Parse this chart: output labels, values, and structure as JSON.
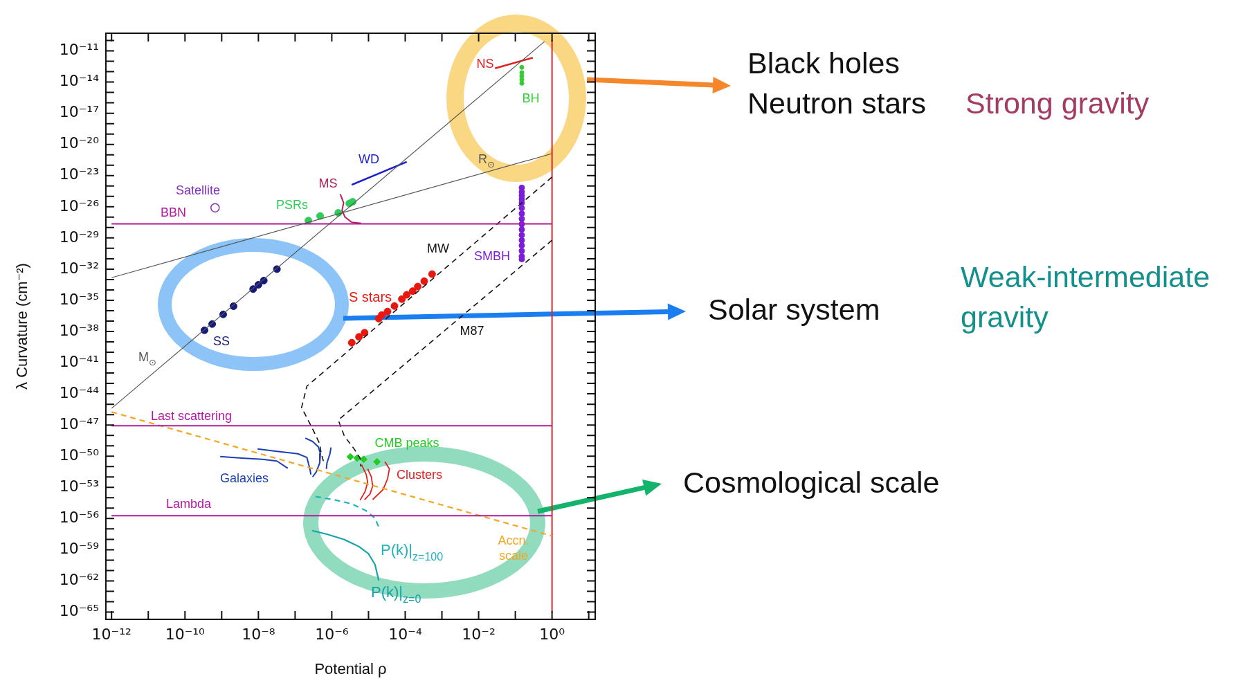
{
  "chart_data": {
    "type": "scatter",
    "xlabel": "Potential ρ",
    "ylabel": "λ Curvature (cm⁻²)",
    "log": "xy",
    "xlim": [
      7e-13,
      15
    ],
    "ylim": [
      2e-66,
      5e-10
    ],
    "xticks": [
      {
        "value": 1e-12,
        "label": "10⁻¹²"
      },
      {
        "value": 1e-11,
        "label": null
      },
      {
        "value": 1e-10,
        "label": "10⁻¹⁰"
      },
      {
        "value": 1e-09,
        "label": null
      },
      {
        "value": 1e-08,
        "label": "10⁻⁸"
      },
      {
        "value": 1e-07,
        "label": null
      },
      {
        "value": 1e-06,
        "label": "10⁻⁶"
      },
      {
        "value": 1e-05,
        "label": null
      },
      {
        "value": 0.0001,
        "label": "10⁻⁴"
      },
      {
        "value": 0.001,
        "label": null
      },
      {
        "value": 0.01,
        "label": "10⁻²"
      },
      {
        "value": 0.1,
        "label": null
      },
      {
        "value": 1,
        "label": "10⁰"
      },
      {
        "value": 10,
        "label": null
      }
    ],
    "yticks": [
      {
        "value": 1e-65,
        "label": "10⁻⁶⁵"
      },
      {
        "value": 1e-64,
        "label": null
      },
      {
        "value": 1e-63,
        "label": null
      },
      {
        "value": 1e-62,
        "label": "10⁻⁶²"
      },
      {
        "value": 1e-61,
        "label": null
      },
      {
        "value": 1e-60,
        "label": null
      },
      {
        "value": 1e-59,
        "label": "10⁻⁵⁹"
      },
      {
        "value": 1e-58,
        "label": null
      },
      {
        "value": 1e-57,
        "label": null
      },
      {
        "value": 1e-56,
        "label": "10⁻⁵⁶"
      },
      {
        "value": 1e-55,
        "label": null
      },
      {
        "value": 1e-54,
        "label": null
      },
      {
        "value": 1e-53,
        "label": "10⁻⁵³"
      },
      {
        "value": 1e-52,
        "label": null
      },
      {
        "value": 1e-51,
        "label": null
      },
      {
        "value": 1e-50,
        "label": "10⁻⁵⁰"
      },
      {
        "value": 1e-49,
        "label": null
      },
      {
        "value": 1e-48,
        "label": null
      },
      {
        "value": 1e-47,
        "label": "10⁻⁴⁷"
      },
      {
        "value": 1e-46,
        "label": null
      },
      {
        "value": 1e-45,
        "label": null
      },
      {
        "value": 1e-44,
        "label": "10⁻⁴⁴"
      },
      {
        "value": 1e-43,
        "label": null
      },
      {
        "value": 1e-42,
        "label": null
      },
      {
        "value": 1e-41,
        "label": "10⁻⁴¹"
      },
      {
        "value": 1e-40,
        "label": null
      },
      {
        "value": 1e-39,
        "label": null
      },
      {
        "value": 1e-38,
        "label": "10⁻³⁸"
      },
      {
        "value": 1e-37,
        "label": null
      },
      {
        "value": 1e-36,
        "label": null
      },
      {
        "value": 1e-35,
        "label": "10⁻³⁵"
      },
      {
        "value": 1e-34,
        "label": null
      },
      {
        "value": 1e-33,
        "label": null
      },
      {
        "value": 1e-32,
        "label": "10⁻³²"
      },
      {
        "value": 1e-31,
        "label": null
      },
      {
        "value": 1e-30,
        "label": null
      },
      {
        "value": 1e-29,
        "label": "10⁻²⁹"
      },
      {
        "value": 1e-28,
        "label": null
      },
      {
        "value": 1e-27,
        "label": null
      },
      {
        "value": 1e-26,
        "label": "10⁻²⁶"
      },
      {
        "value": 1e-25,
        "label": null
      },
      {
        "value": 1e-24,
        "label": null
      },
      {
        "value": 1e-23,
        "label": "10⁻²³"
      },
      {
        "value": 1e-22,
        "label": null
      },
      {
        "value": 1e-21,
        "label": null
      },
      {
        "value": 1e-20,
        "label": "10⁻²⁰"
      },
      {
        "value": 1e-19,
        "label": null
      },
      {
        "value": 1e-18,
        "label": null
      },
      {
        "value": 1e-17,
        "label": "10⁻¹⁷"
      },
      {
        "value": 1e-16,
        "label": null
      },
      {
        "value": 1e-15,
        "label": null
      },
      {
        "value": 1e-14,
        "label": "10⁻¹⁴"
      },
      {
        "value": 1e-13,
        "label": null
      },
      {
        "value": 1e-12,
        "label": null
      },
      {
        "value": 1e-11,
        "label": "10⁻¹¹"
      },
      {
        "value": 1e-10,
        "label": null
      }
    ],
    "annotations": [
      "Black holes",
      "Neutron stars",
      "Strong gravity",
      "Solar system",
      "Weak-intermediate gravity",
      "Cosmological scale",
      "R$_{⊙}$",
      "M$_{⊙}$"
    ],
    "series": [
      {
        "type": "line",
        "color": "#555555",
        "x": [
          1e-12,
          0.62
        ],
        "values": [
          4e-46,
          7.8e-11
        ]
      },
      {
        "type": "line",
        "color": "#555555",
        "x": [
          1e-12,
          1
        ],
        "values": [
          1.5e-33,
          1.3e-21
        ]
      },
      {
        "type": "line",
        "name": "BBN",
        "color": "#b5179e",
        "x": [
          1e-12,
          1
        ],
        "values": [
          2.3e-28,
          2.3e-28
        ]
      },
      {
        "type": "line",
        "name": "Last scattering",
        "color": "#b5179e",
        "x": [
          1e-12,
          1
        ],
        "values": [
          8.5e-48,
          8.5e-48
        ]
      },
      {
        "type": "line",
        "name": "Lambda",
        "color": "#b5179e",
        "x": [
          1e-12,
          1
        ],
        "values": [
          1.9e-56,
          1.9e-56
        ]
      },
      {
        "type": "line",
        "name": "Accn. scale",
        "color": "#f5a623",
        "line_style": "dashed",
        "x": [
          1e-12,
          1
        ],
        "values": [
          1.8e-46,
          2.1e-58
        ]
      },
      {
        "type": "line",
        "name": "MW",
        "color": "#111111",
        "line_style": "dashed",
        "x": [
          1,
          2.1e-07,
          1.5e-07,
          3e-07,
          4.6e-07,
          5.2e-07,
          5.9e-07
        ],
        "values": [
          7.1e-24,
          5.5e-44,
          4.8e-46,
          4.2e-48,
          1.8e-49,
          1.6e-50,
          3.4e-51
        ]
      },
      {
        "type": "line",
        "name": "M87",
        "color": "#111111",
        "line_style": "dashed",
        "x": [
          1,
          1.5e-06,
          2.2e-06,
          4e-06,
          5.9e-06,
          6.2e-06
        ],
        "values": [
          6e-30,
          3e-47,
          8.5e-49,
          5.4e-50,
          6.5e-51,
          1e-51
        ]
      },
      {
        "name": "S stars",
        "color": "#e8170f",
        "marker": "circle",
        "x": [
          0.00054,
          0.00033,
          0.00022,
          0.00016,
          0.00011,
          8.1e-05,
          5.1e-05,
          3.3e-05,
          2.3e-05,
          1.9e-05,
          7.8e-06,
          5.5e-06,
          3.5e-06
        ],
        "values": [
          3.3e-33,
          6.9e-34,
          2.1e-34,
          7.6e-35,
          3.4e-35,
          1.3e-35,
          2.8e-36,
          8.3e-37,
          3.8e-37,
          1.7e-37,
          7.6e-39,
          3e-39,
          8.3e-40
        ]
      },
      {
        "name": "SS",
        "color": "#141a7a",
        "marker": "circle",
        "x": [
          3.2e-08,
          1.4e-08,
          1e-08,
          7.2e-09,
          2.1e-09,
          1.1e-09,
          5.5e-10,
          3.4e-10
        ],
        "values": [
          1e-32,
          7.9e-34,
          3.1e-34,
          1.2e-34,
          2.7e-36,
          4.4e-37,
          5.2e-38,
          1.3e-38
        ]
      },
      {
        "name": "PSRs",
        "color": "#2ecc5a",
        "marker": "circle",
        "x": [
          2.3e-07,
          4.8e-07,
          1.5e-06,
          3e-06,
          3.7e-06
        ],
        "values": [
          4.7e-28,
          1.3e-27,
          2.6e-27,
          2.1e-26,
          3e-26
        ]
      },
      {
        "type": "line",
        "name": "MS",
        "color": "#b0205a",
        "x": [
          1.7e-06,
          2.1e-06,
          1.9e-06,
          2.3e-06,
          3.5e-06,
          6.3e-06
        ],
        "values": [
          1.6e-25,
          2.4e-26,
          4.3e-27,
          1e-27,
          3.2e-28,
          2.5e-28
        ]
      },
      {
        "type": "line",
        "name": "WD",
        "color": "#1c1ccc",
        "x": [
          3.5e-06,
          0.00011
        ],
        "values": [
          1.3e-24,
          2.1e-22
        ]
      },
      {
        "type": "line",
        "name": "NS",
        "color": "#e02020",
        "x": [
          0.028,
          0.3
        ],
        "values": [
          2.1e-13,
          2.2e-12
        ]
      },
      {
        "name": "BH",
        "color": "#33cc33",
        "marker": "circle",
        "x": [
          0.15,
          0.15,
          0.15,
          0.15,
          0.15
        ],
        "values": [
          2.6e-13,
          8.1e-14,
          3.7e-14,
          1.7e-14,
          7.6e-15
        ]
      },
      {
        "name": "SMBH",
        "color": "#7a1fd6",
        "marker": "circle",
        "x": [
          0.15,
          0.15,
          0.15,
          0.15,
          0.15,
          0.15,
          0.15,
          0.15,
          0.15,
          0.15,
          0.15,
          0.15,
          0.15,
          0.15,
          0.15,
          0.15
        ],
        "values": [
          6.8e-25,
          2.6e-25,
          1.2e-25,
          5.4e-26,
          2.4e-26,
          7.4e-27,
          2.2e-27,
          6.9e-28,
          2.1e-28,
          6.5e-29,
          1.9e-29,
          6e-30,
          1.9e-30,
          5.6e-31,
          1.7e-31,
          9.1e-32
        ]
      },
      {
        "name": "Satellite",
        "color": "#8030c0",
        "marker": "circle",
        "x": [
          6.6e-10
        ],
        "values": [
          8.1e-27
        ]
      },
      {
        "type": "line",
        "name": "Galaxies",
        "color": "#1a3fb5",
        "x": [
          9.1e-10,
          3.5e-09,
          1.3e-08,
          3.2e-08,
          6.3e-08
        ],
        "values": [
          9.3e-51,
          6.5e-51,
          5e-51,
          3.4e-51,
          6.9e-52
        ]
      },
      {
        "type": "line",
        "color": "#1a3fb5",
        "x": [
          9.5e-09,
          3.2e-08,
          1.2e-07,
          2.1e-07,
          2.5e-07,
          2.7e-07
        ],
        "values": [
          5e-50,
          2.9e-50,
          1.7e-50,
          7.4e-51,
          6.9e-52,
          1.7e-52
        ]
      },
      {
        "type": "line",
        "color": "#1a3fb5",
        "x": [
          1.9e-07,
          3e-07,
          4.3e-07,
          4.9e-07,
          4.7e-07,
          3.8e-07,
          3e-07
        ],
        "values": [
          5.4e-49,
          2.6e-49,
          7.9e-50,
          1.7e-50,
          2.3e-51,
          3.2e-52,
          1e-52
        ]
      },
      {
        "type": "line",
        "color": "#1a3fb5",
        "x": [
          9.5e-07,
          8.9e-07,
          7.4e-07,
          7.1e-07
        ],
        "values": [
          6.9e-50,
          1.7e-50,
          2.3e-51,
          6e-52
        ]
      },
      {
        "name": "CMB peaks",
        "color": "#22cc22",
        "marker": "diamond",
        "x": [
          3.2e-06,
          4.9e-06,
          7.4e-06,
          1.7e-05
        ],
        "values": [
          8.7e-51,
          6.5e-51,
          5e-51,
          2.9e-51
        ]
      },
      {
        "type": "line",
        "name": "Clusters",
        "color": "#e02020",
        "x": [
          2.8e-05,
          3.7e-05,
          3.3e-05,
          2.5e-05,
          1.3e-05
        ],
        "values": [
          2.9e-51,
          6e-52,
          6.6e-53,
          6.2e-54,
          6.6e-55
        ]
      },
      {
        "type": "line",
        "color": "#e02020",
        "x": [
          6.5e-06,
          8.7e-06,
          9.5e-06,
          8.1e-06,
          5.9e-06
        ],
        "values": [
          1.5e-51,
          1.7e-52,
          3e-53,
          4.1e-54,
          5.8e-55
        ]
      },
      {
        "type": "line",
        "color": "#e02020",
        "x": [
          9.5e-06,
          1.2e-05,
          1.3e-05,
          1.1e-05,
          7.8e-06
        ],
        "values": [
          6e-52,
          9.8e-53,
          1.3e-53,
          2.3e-54,
          6.6e-55
        ]
      },
      {
        "type": "line",
        "name": "P(k)|$_{z=100}$",
        "color": "#1fb3bb",
        "line_style": "dashed",
        "x": [
          3.6e-07,
          1.1e-06,
          3.5e-06,
          8.7e-06,
          1.5e-05,
          1.9e-05
        ],
        "values": [
          1.3e-54,
          6.6e-55,
          2.6e-55,
          5.4e-56,
          1.1e-56,
          1.5e-57
        ]
      },
      {
        "type": "line",
        "name": "P(k)|$_{z=0}$",
        "color": "#17a2aa",
        "x": [
          2.9e-07,
          7.4e-07,
          2.2e-06,
          5.5e-06,
          1e-05,
          1.5e-05,
          1.9e-05
        ],
        "values": [
          6.9e-58,
          3.1e-58,
          9.5e-59,
          2e-59,
          4.1e-60,
          3.8e-61,
          1.1e-62
        ]
      },
      {
        "type": "line",
        "color": "#d62828",
        "x": [
          1,
          1
        ],
        "values": [
          1e-10,
          1e-65
        ]
      }
    ]
  }
}
